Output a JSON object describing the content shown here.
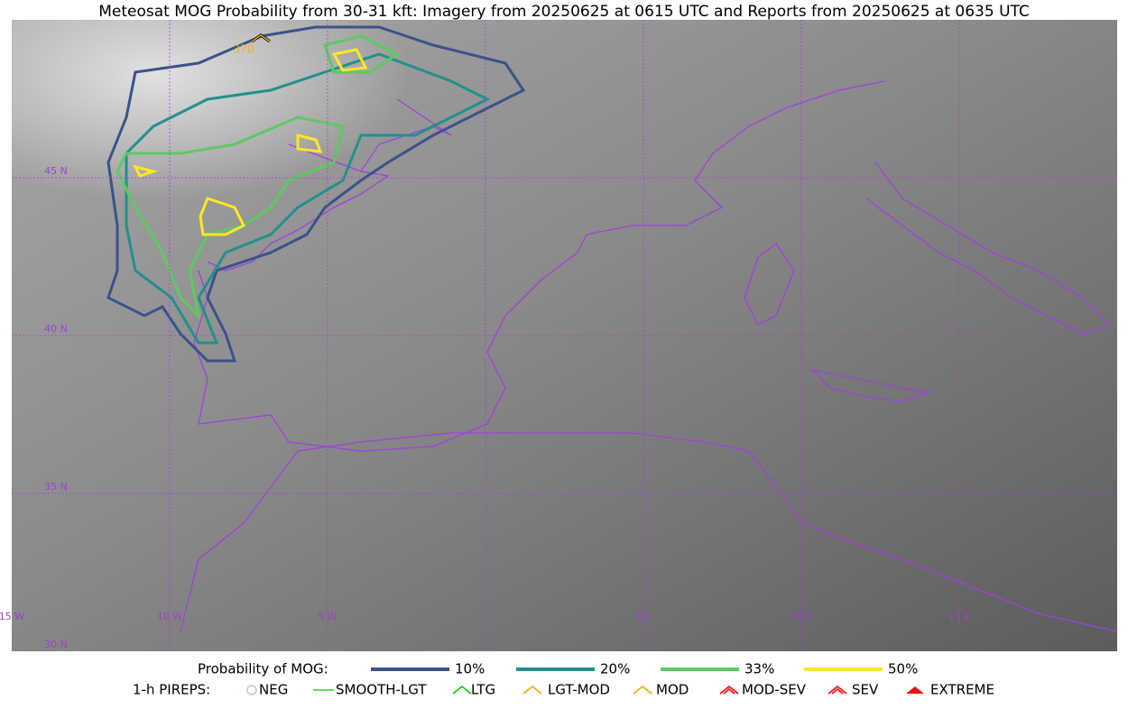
{
  "header": {
    "title": "Meteosat MOG Probability from 30-31 kft: Imagery from 20250625 at 0615 UTC and Reports from 20250625 at 0635 UTC"
  },
  "map": {
    "lat_labels": [
      "45 N",
      "40 N",
      "35 N",
      "30 N"
    ],
    "lon_labels": [
      "15 W",
      "10 W",
      "5 W",
      "5 E",
      "10 E",
      "15 E"
    ],
    "report_label": "370"
  },
  "legend": {
    "probability": {
      "title": "Probability of MOG:",
      "items": [
        {
          "label": "10%",
          "color": "#3b528b"
        },
        {
          "label": "20%",
          "color": "#21918c"
        },
        {
          "label": "33%",
          "color": "#5ec962"
        },
        {
          "label": "50%",
          "color": "#fde725"
        }
      ]
    },
    "pireps": {
      "title": "1-h PIREPS:",
      "items": [
        {
          "label": "NEG",
          "color": "#c8b8f0"
        },
        {
          "label": "SMOOTH-LGT",
          "color": "#33cc33"
        },
        {
          "label": "LTG",
          "color": "#22cc22"
        },
        {
          "label": "LGT-MOD",
          "color": "#f0b020"
        },
        {
          "label": "MOD",
          "color": "#f0b020"
        },
        {
          "label": "MOD-SEV",
          "color": "#ee2222"
        },
        {
          "label": "SEV",
          "color": "#ee2222"
        },
        {
          "label": "EXTREME",
          "color": "#ee1111"
        }
      ]
    }
  }
}
